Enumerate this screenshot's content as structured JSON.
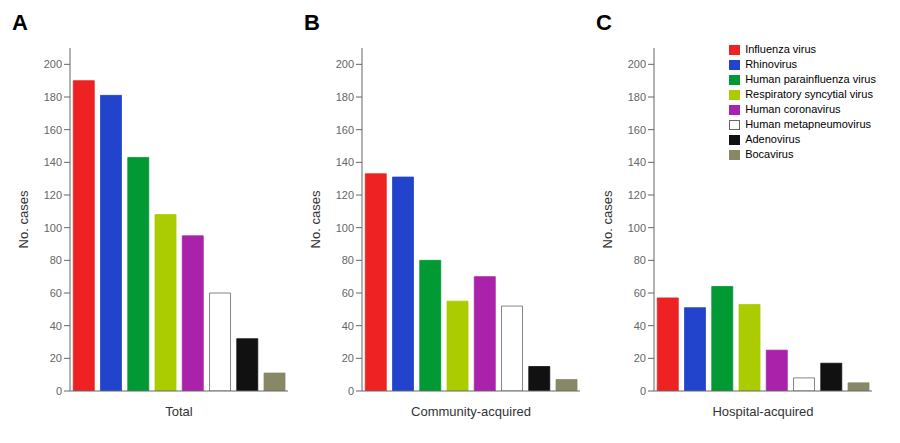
{
  "chart_data": [
    {
      "type": "bar",
      "title": "A",
      "xlabel": "Total",
      "ylabel": "No. cases",
      "categories": [
        "Influenza virus",
        "Rhinovirus",
        "Human parainfluenza virus",
        "Respiratory syncytial virus",
        "Human coronavirus",
        "Human metapneumovirus",
        "Adenovirus",
        "Bocavirus"
      ],
      "values": [
        190,
        181,
        143,
        108,
        95,
        60,
        32,
        11
      ],
      "colors": [
        "#ee2222",
        "#2244cc",
        "#009933",
        "#aacc00",
        "#aa22aa",
        "#ffffff",
        "#111111",
        "#888866"
      ],
      "ylim": [
        0,
        210
      ],
      "yticks": [
        0,
        20,
        40,
        60,
        80,
        100,
        120,
        140,
        160,
        180,
        200
      ],
      "grid": false,
      "tick_labels": "y"
    },
    {
      "type": "bar",
      "title": "B",
      "xlabel": "Community-acquired",
      "ylabel": "No. cases",
      "categories": [
        "Influenza virus",
        "Rhinovirus",
        "Human parainfluenza virus",
        "Respiratory syncytial virus",
        "Human coronavirus",
        "Human metapneumovirus",
        "Adenovirus",
        "Bocavirus"
      ],
      "values": [
        133,
        131,
        80,
        55,
        70,
        52,
        15,
        7
      ],
      "colors": [
        "#ee2222",
        "#2244cc",
        "#009933",
        "#aacc00",
        "#aa22aa",
        "#ffffff",
        "#111111",
        "#888866"
      ],
      "ylim": [
        0,
        210
      ],
      "yticks": [
        0,
        20,
        40,
        60,
        80,
        100,
        120,
        140,
        160,
        180,
        200
      ],
      "grid": false,
      "tick_labels": "y"
    },
    {
      "type": "bar",
      "title": "C",
      "xlabel": "Hospital-acquired",
      "ylabel": "No. cases",
      "categories": [
        "Influenza virus",
        "Rhinovirus",
        "Human parainfluenza virus",
        "Respiratory syncytial virus",
        "Human coronavirus",
        "Human metapneumovirus",
        "Adenovirus",
        "Bocavirus"
      ],
      "values": [
        57,
        51,
        64,
        53,
        25,
        8,
        17,
        5
      ],
      "colors": [
        "#ee2222",
        "#2244cc",
        "#009933",
        "#aacc00",
        "#aa22aa",
        "#ffffff",
        "#111111",
        "#888866"
      ],
      "ylim": [
        0,
        210
      ],
      "yticks": [
        0,
        20,
        40,
        60,
        80,
        100,
        120,
        140,
        160,
        180,
        200
      ],
      "grid": false,
      "tick_labels": "y",
      "legend": "upper right"
    }
  ]
}
